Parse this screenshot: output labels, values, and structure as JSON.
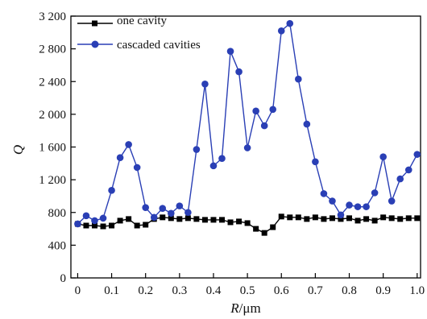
{
  "chart_data": {
    "type": "line",
    "xlabel_italic": "R",
    "xlabel_rest": "/μm",
    "ylabel": "Q",
    "xlim": [
      -0.02,
      1.01
    ],
    "ylim": [
      0,
      3200
    ],
    "xticks": [
      0,
      0.1,
      0.2,
      0.3,
      0.4,
      0.5,
      0.6,
      0.7,
      0.8,
      0.9,
      1.0
    ],
    "xtick_labels": [
      "0",
      "0.1",
      "0.2",
      "0.3",
      "0.4",
      "0.5",
      "0.6",
      "0.7",
      "0.8",
      "0.9",
      "1.0"
    ],
    "yticks": [
      0,
      400,
      800,
      1200,
      1600,
      2000,
      2400,
      2800,
      3200
    ],
    "ytick_labels": [
      "0",
      "400",
      "800",
      "1 200",
      "1 600",
      "2 000",
      "2 400",
      "2 800",
      "3 200"
    ],
    "legend_position": "top-left",
    "series": [
      {
        "name": "one cavity",
        "color": "#000000",
        "marker": "square",
        "x": [
          0,
          0.025,
          0.05,
          0.075,
          0.1,
          0.125,
          0.15,
          0.175,
          0.2,
          0.225,
          0.25,
          0.275,
          0.3,
          0.325,
          0.35,
          0.375,
          0.4,
          0.425,
          0.45,
          0.475,
          0.5,
          0.525,
          0.55,
          0.575,
          0.6,
          0.625,
          0.65,
          0.675,
          0.7,
          0.725,
          0.75,
          0.775,
          0.8,
          0.825,
          0.85,
          0.875,
          0.9,
          0.925,
          0.95,
          0.975,
          1.0
        ],
        "y": [
          660,
          640,
          640,
          630,
          640,
          700,
          720,
          640,
          650,
          720,
          740,
          730,
          720,
          730,
          720,
          710,
          710,
          710,
          680,
          690,
          670,
          600,
          550,
          620,
          750,
          740,
          740,
          720,
          740,
          720,
          730,
          720,
          730,
          700,
          720,
          700,
          740,
          730,
          720,
          730,
          730
        ]
      },
      {
        "name": "cascaded cavities",
        "color": "#2a3fb5",
        "marker": "circle",
        "x": [
          0,
          0.025,
          0.05,
          0.075,
          0.1,
          0.125,
          0.15,
          0.175,
          0.2,
          0.225,
          0.25,
          0.275,
          0.3,
          0.325,
          0.35,
          0.375,
          0.4,
          0.425,
          0.45,
          0.475,
          0.5,
          0.525,
          0.55,
          0.575,
          0.6,
          0.625,
          0.65,
          0.675,
          0.7,
          0.725,
          0.75,
          0.775,
          0.8,
          0.825,
          0.85,
          0.875,
          0.9,
          0.925,
          0.95,
          0.975,
          1.0
        ],
        "y": [
          660,
          760,
          700,
          730,
          1070,
          1470,
          1630,
          1350,
          860,
          740,
          850,
          790,
          880,
          800,
          1570,
          2370,
          1370,
          1460,
          2770,
          2520,
          1590,
          2040,
          1860,
          2060,
          3020,
          3110,
          2430,
          1880,
          1420,
          1030,
          940,
          770,
          890,
          870,
          870,
          1040,
          1480,
          940,
          1210,
          1320,
          1510
        ]
      }
    ]
  }
}
